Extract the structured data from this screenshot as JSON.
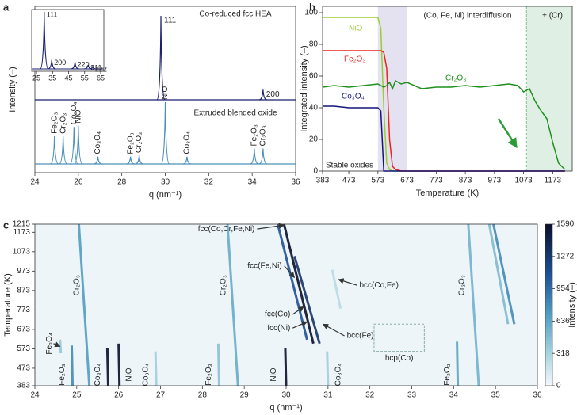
{
  "chart_data": [
    {
      "type": "peaks",
      "panel_label": "a",
      "y_label": "Intensity (–)",
      "x_label": "q (nm⁻¹)",
      "xlim": [
        24,
        36
      ],
      "xticks": [
        24,
        26,
        28,
        30,
        32,
        34,
        36
      ],
      "ylim": [
        0,
        100
      ],
      "series": [
        {
          "name": "Co-reduced fcc HEA",
          "color": "#1a1f6e",
          "x": [
            29.8,
            34.5
          ],
          "values": [
            100,
            12
          ],
          "labels": [
            "111",
            "200"
          ]
        },
        {
          "name": "Extruded blended oxide",
          "color": "#4a90b8",
          "x": [
            24.9,
            25.3,
            25.8,
            26.0,
            26.9,
            28.4,
            28.8,
            30.0,
            31.0,
            34.1,
            34.5
          ],
          "values": [
            45,
            45,
            60,
            62,
            12,
            12,
            14,
            100,
            12,
            25,
            25
          ],
          "labels": [
            "Fe₂O₃",
            "Cr₂O₃",
            "Co₃O₄",
            "NiO",
            "Co₃O₄",
            "Fe₂O₃",
            "Cr₂O₃",
            "NiO",
            "Co₃O₄",
            "Fe₂O₃",
            "Cr₂O₃"
          ]
        }
      ],
      "inset": {
        "xlim": [
          22,
          67
        ],
        "xticks": [
          25,
          35,
          45,
          55,
          65
        ],
        "ylim": [
          0,
          100
        ],
        "color": "#1a1f6e",
        "x": [
          29.8,
          34.5,
          49.0,
          57.2,
          60.0
        ],
        "values": [
          100,
          16,
          12,
          7,
          4
        ],
        "labels": [
          "111",
          "200",
          "220",
          "311",
          "222"
        ]
      }
    },
    {
      "type": "line",
      "panel_label": "b",
      "y_label": "Integrated intensity (–)",
      "x_label": "Temperature (K)",
      "xlim": [
        383,
        1240
      ],
      "xticks": [
        383,
        473,
        573,
        673,
        773,
        873,
        973,
        1073,
        1173
      ],
      "ylim": [
        0,
        104
      ],
      "yticks": [
        0,
        20,
        40,
        60,
        80,
        100
      ],
      "shaded_regions": [
        {
          "x": [
            573,
            673
          ],
          "color": "#e4e2f0"
        },
        {
          "x": [
            1083,
            1240
          ],
          "color": "#e0efe3"
        }
      ],
      "annotations": [
        "(Co, Fe, Ni) interdiffusion",
        "+ (Cr)",
        "Stable oxides"
      ],
      "x": [
        383,
        423,
        473,
        523,
        573,
        583,
        593,
        603,
        613,
        623,
        633,
        653,
        673,
        723,
        773,
        823,
        873,
        923,
        973,
        1023,
        1053,
        1073,
        1093,
        1113,
        1133,
        1153,
        1173,
        1193,
        1215
      ],
      "series": [
        {
          "name": "NiO",
          "color": "#9acd32",
          "values": [
            97,
            97,
            97,
            97,
            97,
            90,
            40,
            5,
            1,
            0,
            0,
            0,
            0,
            0,
            0,
            0,
            0,
            0,
            0,
            0,
            0,
            0,
            0,
            0,
            0,
            0,
            0,
            0,
            0
          ]
        },
        {
          "name": "Fe₂O₃",
          "color": "#e8251f",
          "values": [
            76,
            76,
            76,
            76,
            76,
            76,
            75,
            65,
            20,
            3,
            1,
            0,
            0,
            0,
            0,
            0,
            0,
            0,
            0,
            0,
            0,
            0,
            0,
            0,
            0,
            0,
            0,
            0,
            0
          ]
        },
        {
          "name": "Cr₂O₃",
          "color": "#1f8f1f",
          "values": [
            53,
            54,
            53,
            54,
            55,
            54,
            53,
            54,
            56,
            52,
            57,
            55,
            56,
            52,
            53,
            53,
            54,
            53,
            54,
            55,
            54,
            50,
            52,
            44,
            38,
            33,
            18,
            5,
            1
          ]
        },
        {
          "name": "Co₃O₄",
          "color": "#14147a",
          "values": [
            41,
            41,
            40,
            40,
            40,
            38,
            0,
            0,
            0,
            0,
            0,
            0,
            0,
            0,
            0,
            0,
            0,
            0,
            0,
            0,
            0,
            0,
            0,
            0,
            0,
            0,
            0,
            0,
            0
          ]
        }
      ]
    },
    {
      "type": "heatmap",
      "panel_label": "c",
      "y_label": "Temperature (K)",
      "x_label": "q (nm⁻¹)",
      "z_label": "Intensity (–)",
      "xlim": [
        24,
        36
      ],
      "xticks": [
        24,
        25,
        26,
        27,
        28,
        29,
        30,
        31,
        32,
        33,
        34,
        35,
        36
      ],
      "ylim": [
        383,
        1215
      ],
      "yticks": [
        383,
        473,
        573,
        673,
        773,
        873,
        973,
        1073,
        1173,
        1215
      ],
      "zlim": [
        0,
        1590
      ],
      "zticks": [
        0,
        318,
        636,
        954,
        1272,
        1590
      ],
      "streaks": {
        "x_start": [
          24.9,
          24.62,
          25.3,
          25.75,
          26.02,
          26.9,
          28.4,
          28.85,
          30.0,
          31.0,
          34.1,
          34.6,
          30.65,
          30.8,
          30.5,
          31.3,
          35.45,
          35.3
        ],
        "x_end": [
          24.88,
          24.6,
          25.05,
          25.73,
          26.0,
          26.88,
          28.38,
          28.6,
          29.98,
          30.98,
          34.08,
          34.35,
          29.95,
          30.2,
          29.8,
          31.1,
          34.95,
          34.85
        ],
        "y_start": [
          383,
          550,
          383,
          383,
          383,
          383,
          383,
          383,
          383,
          383,
          383,
          383,
          600,
          600,
          620,
          780,
          700,
          700
        ],
        "y_end": [
          590,
          620,
          1215,
          575,
          600,
          560,
          600,
          1215,
          575,
          560,
          610,
          1215,
          1215,
          1050,
          1215,
          980,
          1215,
          1215
        ],
        "values": [
          800,
          400,
          700,
          1590,
          1590,
          350,
          450,
          600,
          1590,
          350,
          650,
          550,
          1590,
          1300,
          1100,
          250,
          800,
          500
        ]
      },
      "annotations": [
        "fcc(Co,Cr,Fe,Ni)",
        "fcc(Fe,Ni)",
        "bcc(Co,Fe)",
        "fcc(Co)",
        "fcc(Ni)",
        "bcc(Fe)",
        "hcp(Co)",
        "Cr₂O₃",
        "Cr₂O₃",
        "Cr₂O₃",
        "Fe₃O₄",
        "Fe₂O₃",
        "Co₃O₄",
        "NiO",
        "Co₃O₄",
        "Fe₂O₃",
        "NiO",
        "Co₃O₄",
        "Fe₂O₃"
      ]
    }
  ]
}
